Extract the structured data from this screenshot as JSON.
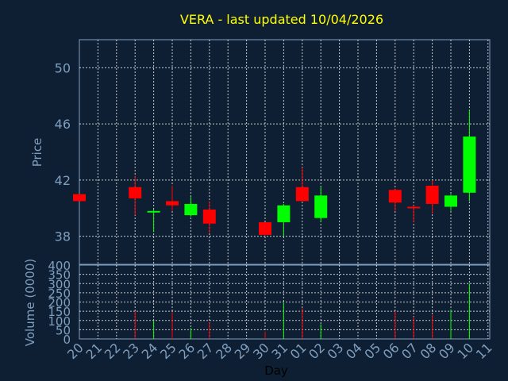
{
  "chart_data": {
    "type": "candlestick",
    "title": "VERA - last updated 10/04/2026",
    "price_axis": {
      "label": "Price",
      "ylim": [
        36,
        52
      ],
      "ticks": [
        38,
        42,
        46,
        50
      ]
    },
    "volume_axis": {
      "label": "Volume (0000)",
      "ylim": [
        0,
        400
      ],
      "ticks": [
        0,
        50,
        100,
        150,
        200,
        250,
        300,
        350,
        400
      ]
    },
    "xlabel": "Day",
    "x_ticks": [
      "20",
      "21",
      "22",
      "23",
      "24",
      "25",
      "26",
      "27",
      "28",
      "29",
      "30",
      "31",
      "01",
      "02",
      "03",
      "04",
      "05",
      "06",
      "07",
      "08",
      "09",
      "10",
      "11"
    ],
    "grid": true,
    "colors": {
      "up": "#00ff00",
      "down": "#ff0000",
      "background": "#0f1f33",
      "axis_text": "#7f9fbf",
      "title": "#ffff00",
      "grid": "#ffffff"
    },
    "candles": [
      {
        "day": "20",
        "open": 41.0,
        "high": 41.0,
        "low": 40.5,
        "close": 40.5,
        "volume": 0
      },
      {
        "day": "23",
        "open": 41.5,
        "high": 42.3,
        "low": 39.5,
        "close": 40.7,
        "volume": 150
      },
      {
        "day": "24",
        "open": 39.8,
        "high": 39.9,
        "low": 38.3,
        "close": 39.8,
        "volume": 100
      },
      {
        "day": "25",
        "open": 40.5,
        "high": 41.6,
        "low": 39.8,
        "close": 40.2,
        "volume": 145
      },
      {
        "day": "26",
        "open": 39.5,
        "high": 40.8,
        "low": 39.4,
        "close": 40.3,
        "volume": 60
      },
      {
        "day": "27",
        "open": 39.9,
        "high": 40.5,
        "low": 38.2,
        "close": 38.9,
        "volume": 90
      },
      {
        "day": "30",
        "open": 39.0,
        "high": 39.0,
        "low": 38.0,
        "close": 38.1,
        "volume": 40
      },
      {
        "day": "31",
        "open": 39.0,
        "high": 40.3,
        "low": 38.0,
        "close": 40.2,
        "volume": 195
      },
      {
        "day": "01",
        "open": 41.5,
        "high": 42.9,
        "low": 40.5,
        "close": 40.5,
        "volume": 165
      },
      {
        "day": "02",
        "open": 39.3,
        "high": 41.5,
        "low": 39.0,
        "close": 40.9,
        "volume": 80
      },
      {
        "day": "06",
        "open": 41.3,
        "high": 41.4,
        "low": 39.8,
        "close": 40.4,
        "volume": 150
      },
      {
        "day": "07",
        "open": 40.1,
        "high": 40.2,
        "low": 39.0,
        "close": 40.0,
        "volume": 120
      },
      {
        "day": "08",
        "open": 41.6,
        "high": 42.0,
        "low": 39.6,
        "close": 40.3,
        "volume": 130
      },
      {
        "day": "09",
        "open": 40.1,
        "high": 41.0,
        "low": 39.8,
        "close": 40.9,
        "volume": 160
      },
      {
        "day": "10",
        "open": 41.1,
        "high": 47.0,
        "low": 40.5,
        "close": 45.1,
        "volume": 300
      }
    ]
  }
}
